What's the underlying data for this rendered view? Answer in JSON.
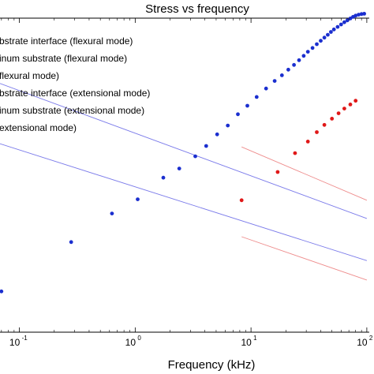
{
  "chart_data": {
    "type": "line",
    "title": "Stress vs frequency",
    "xlabel": "Frequency (kHz)",
    "ylabel": "",
    "xscale": "log",
    "xlim": [
      0.068,
      105
    ],
    "ylim": [
      0,
      1
    ],
    "x_ticks": [
      {
        "base": "10",
        "exp": "-1",
        "value": 0.1
      },
      {
        "base": "10",
        "exp": "0",
        "value": 1
      },
      {
        "base": "10",
        "exp": "1",
        "value": 10
      },
      {
        "base": "10",
        "exp": "2",
        "value": 100
      }
    ],
    "grid": false,
    "legend_placement": "top-left",
    "legend": [
      "bstrate interface (flexural mode)",
      "inum substrate (flexural mode)",
      "flexural mode)",
      "bstrate interface (extensional mode)",
      "inum substrate (extensional mode)",
      "extensional mode)"
    ],
    "series": [
      {
        "kind": "line",
        "color": "#7b7bea",
        "x": [
          0.068,
          100
        ],
        "y": [
          0.792,
          0.362
        ]
      },
      {
        "kind": "line",
        "color": "#7b7bea",
        "x": [
          0.068,
          100
        ],
        "y": [
          0.6,
          0.228
        ]
      },
      {
        "kind": "line",
        "color": "#ee8c8c",
        "x": [
          8.3,
          100
        ],
        "y": [
          0.304,
          0.166
        ]
      },
      {
        "kind": "line",
        "color": "#ee8c8c",
        "x": [
          8.3,
          100
        ],
        "y": [
          0.59,
          0.42
        ]
      },
      {
        "kind": "scatter",
        "color": "#1b2fcf",
        "x": [
          0.07,
          0.28,
          0.63,
          1.05,
          1.75,
          2.4,
          3.3,
          4.1,
          5.1,
          6.3,
          7.7,
          9.3,
          11.2,
          13.5,
          16.0,
          18.5,
          21.0,
          23.5,
          26.0,
          28.5,
          31.0,
          34.0,
          37.0,
          40.0,
          43.0,
          46.0,
          49.0,
          52.0,
          56.0,
          60.0,
          64.0,
          68.0,
          72.0,
          76.0,
          80.0,
          85.0,
          90.0,
          95.0
        ],
        "y": [
          0.13,
          0.287,
          0.378,
          0.423,
          0.492,
          0.521,
          0.56,
          0.593,
          0.63,
          0.658,
          0.694,
          0.721,
          0.749,
          0.776,
          0.8,
          0.818,
          0.836,
          0.851,
          0.866,
          0.88,
          0.893,
          0.905,
          0.917,
          0.928,
          0.938,
          0.947,
          0.956,
          0.964,
          0.972,
          0.98,
          0.987,
          0.993,
          0.999,
          1.004,
          1.008,
          1.011,
          1.013,
          1.014
        ]
      },
      {
        "kind": "scatter",
        "color": "#e01818",
        "x": [
          8.3,
          17.0,
          24.0,
          31.0,
          37.0,
          43.0,
          50.0,
          57.0,
          64.0,
          72.0,
          80.0
        ],
        "y": [
          0.42,
          0.51,
          0.57,
          0.607,
          0.637,
          0.66,
          0.68,
          0.697,
          0.712,
          0.725,
          0.737
        ]
      }
    ]
  }
}
